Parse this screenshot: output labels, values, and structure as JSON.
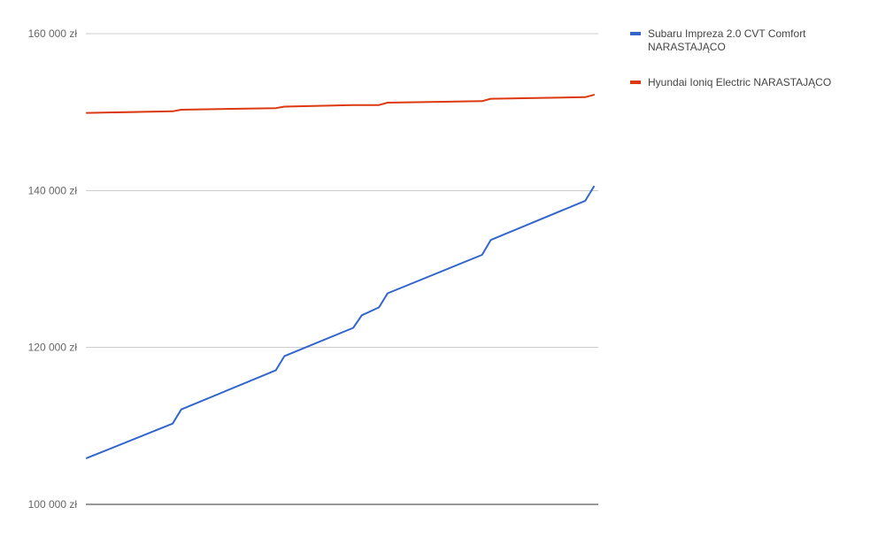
{
  "chart_data": {
    "type": "line",
    "title": "",
    "xlabel": "",
    "ylabel": "",
    "ylim": [
      100000,
      160000
    ],
    "yticks": [
      {
        "value": 100000,
        "label": "100 000 zł"
      },
      {
        "value": 120000,
        "label": "120 000 zł"
      },
      {
        "value": 140000,
        "label": "140 000 zł"
      },
      {
        "value": 160000,
        "label": "160 000 zł"
      }
    ],
    "grid": true,
    "legend_position": "right",
    "x": [
      0,
      10,
      11,
      22,
      23,
      31,
      32,
      34,
      35,
      46,
      47,
      58,
      59
    ],
    "series": [
      {
        "name": "Subaru Impreza 2.0 CVT Comfort NARASTAJĄCO",
        "name_lines": [
          "Subaru Impreza 2.0 CVT Comfort",
          "NARASTAJĄCO"
        ],
        "color": "#3366cc",
        "values": [
          105900,
          110300,
          112100,
          117100,
          118900,
          122500,
          124100,
          125100,
          126900,
          131800,
          133700,
          138700,
          140500
        ]
      },
      {
        "name": "Hyundai Ioniq Electric NARASTAJĄCO",
        "name_lines": [
          "Hyundai Ioniq Electric NARASTAJĄCO"
        ],
        "color": "#dc3912",
        "values": [
          149900,
          150100,
          150300,
          150500,
          150700,
          150900,
          150900,
          150900,
          151200,
          151400,
          151700,
          151900,
          152200
        ]
      }
    ]
  }
}
